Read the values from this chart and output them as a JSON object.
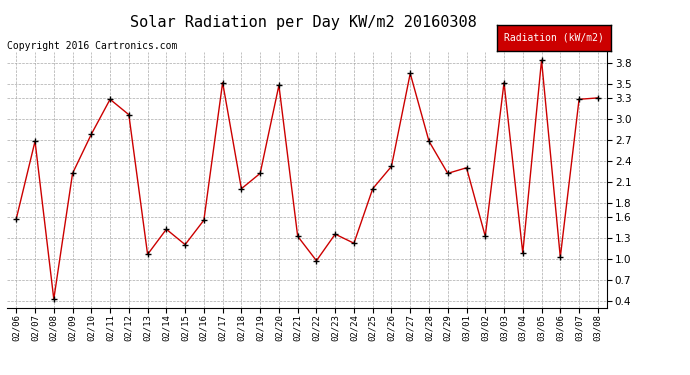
{
  "title": "Solar Radiation per Day KW/m2 20160308",
  "copyright": "Copyright 2016 Cartronics.com",
  "legend_label": "Radiation (kW/m2)",
  "dates": [
    "02/06",
    "02/07",
    "02/08",
    "02/09",
    "02/10",
    "02/11",
    "02/12",
    "02/13",
    "02/14",
    "02/15",
    "02/16",
    "02/17",
    "02/18",
    "02/19",
    "02/20",
    "02/21",
    "02/22",
    "02/23",
    "02/24",
    "02/25",
    "02/26",
    "02/27",
    "02/28",
    "02/29",
    "03/01",
    "03/02",
    "03/03",
    "03/04",
    "03/05",
    "03/06",
    "03/07",
    "03/08"
  ],
  "values": [
    1.57,
    2.68,
    0.42,
    2.22,
    2.78,
    3.28,
    3.06,
    1.06,
    1.42,
    1.2,
    1.55,
    3.52,
    2.0,
    2.22,
    3.48,
    1.32,
    0.97,
    1.35,
    1.22,
    2.0,
    2.32,
    3.65,
    2.68,
    2.22,
    2.3,
    1.32,
    3.52,
    1.08,
    3.84,
    1.02,
    3.28,
    3.3
  ],
  "line_color": "#cc0000",
  "marker_color": "#000000",
  "bg_color": "#ffffff",
  "plot_bg_color": "#ffffff",
  "grid_color": "#aaaaaa",
  "title_fontsize": 11,
  "copyright_fontsize": 7,
  "legend_bg": "#cc0000",
  "legend_text_color": "#ffffff",
  "ylim": [
    0.3,
    3.95
  ],
  "yticks": [
    0.4,
    0.7,
    1.0,
    1.3,
    1.6,
    1.8,
    2.1,
    2.4,
    2.7,
    3.0,
    3.3,
    3.5,
    3.8
  ]
}
